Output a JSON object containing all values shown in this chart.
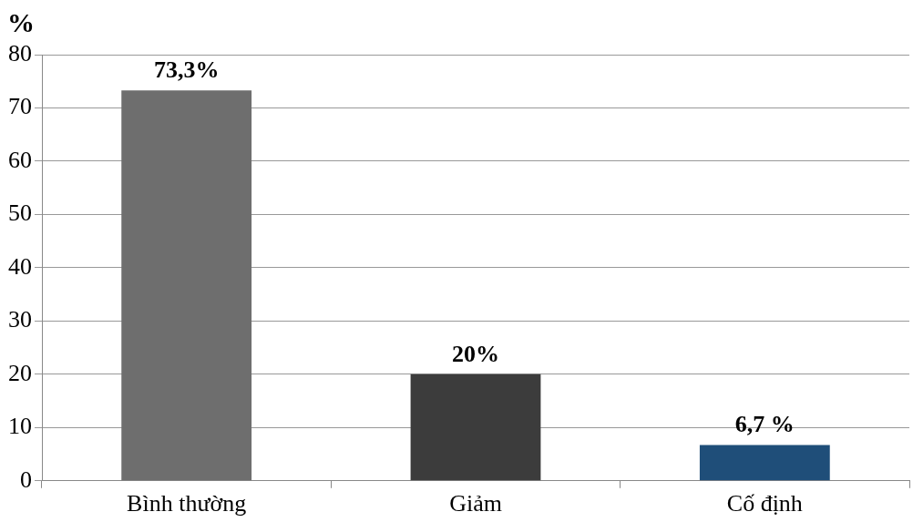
{
  "chart_data": {
    "type": "bar",
    "ylabel": "%",
    "categories": [
      "Bình thường",
      "Giảm",
      "Cố định"
    ],
    "values": [
      73.3,
      20,
      6.7
    ],
    "colors": [
      "#6e6e6e",
      "#3c3c3c",
      "#1f4e79"
    ],
    "value_labels": [
      "73,3%",
      "20%",
      "6,7 %"
    ],
    "ylim": [
      0,
      80
    ],
    "yticks": [
      0,
      10,
      20,
      30,
      40,
      50,
      60,
      70,
      80
    ],
    "grid": "y",
    "legend": false
  }
}
